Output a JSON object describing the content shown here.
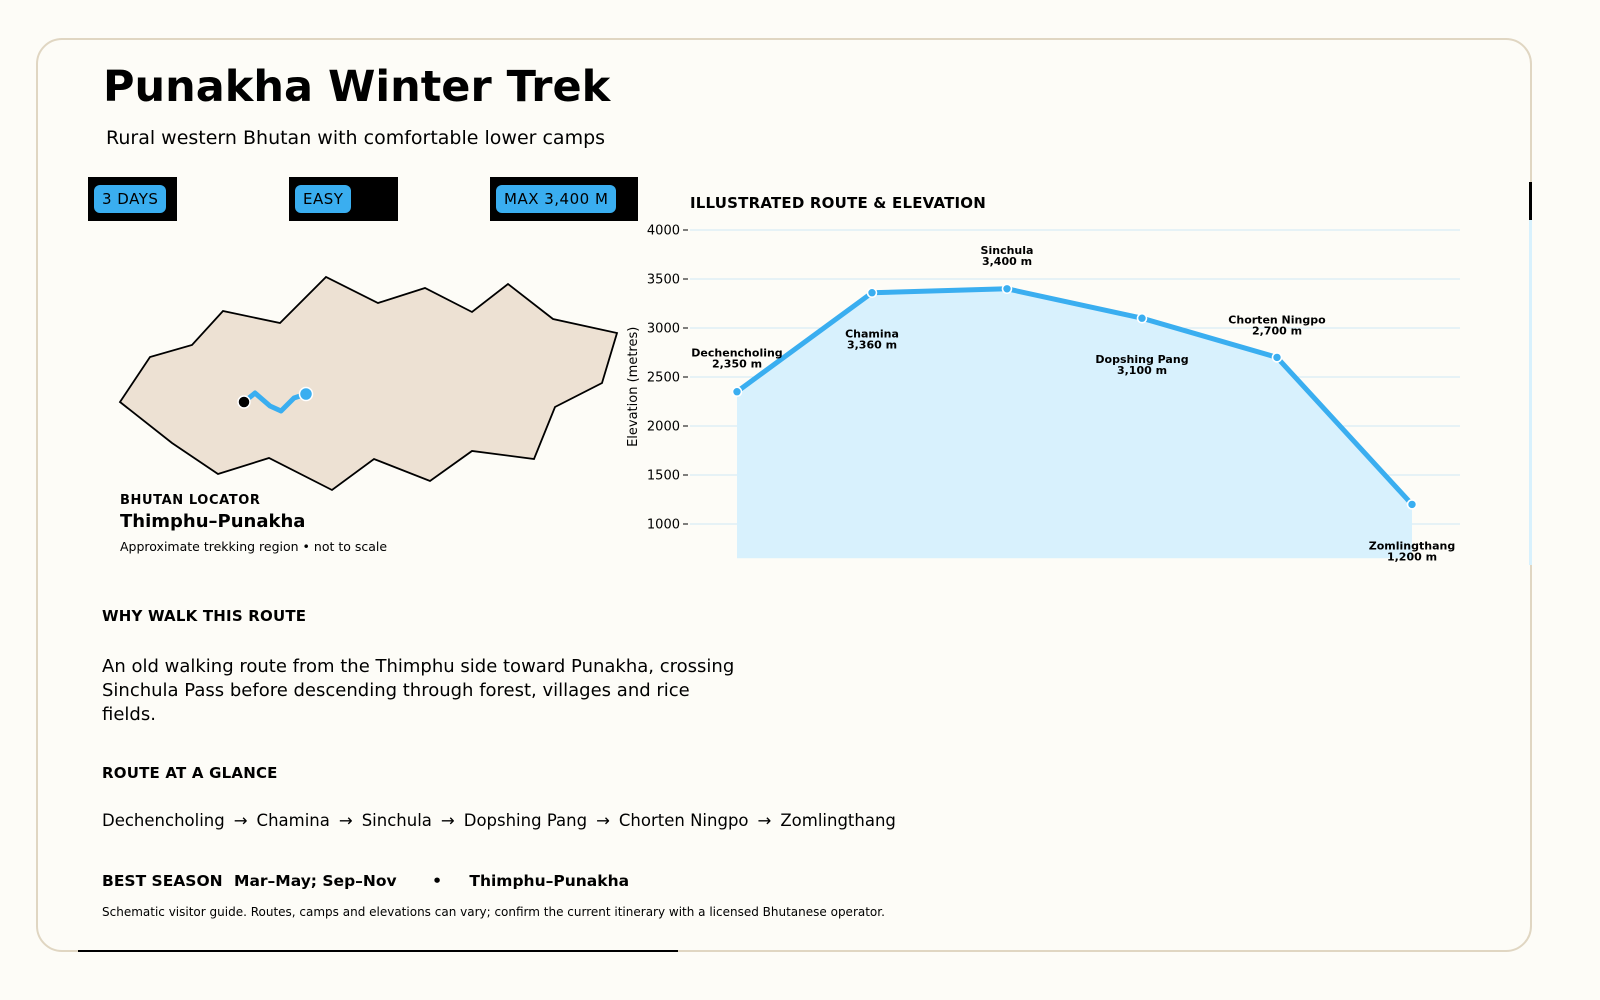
{
  "header": {
    "title": "Punakha Winter Trek",
    "subtitle": "Rural western Bhutan with comfortable lower camps"
  },
  "badges": {
    "days": "3 DAYS",
    "difficulty": "EASY",
    "max_altitude": "MAX 3,400 M"
  },
  "locator": {
    "heading": "BHUTAN LOCATOR",
    "name": "Thimphu–Punakha",
    "note": "Approximate trekking region • not to scale"
  },
  "chart_heading": "ILLUSTRATED ROUTE & ELEVATION",
  "chart_data": {
    "type": "area",
    "title": "ILLUSTRATED ROUTE & ELEVATION",
    "xlabel": "",
    "ylabel": "Elevation (metres)",
    "ylim": [
      650,
      4000
    ],
    "yticks": [
      1000,
      1500,
      2000,
      2500,
      3000,
      3500,
      4000
    ],
    "grid": true,
    "accent_color": "#3aaef0",
    "fill_color": "#d8f1fd",
    "points": [
      {
        "name": "Dechencholing",
        "label": "2,350 m",
        "elevation": 2350
      },
      {
        "name": "Chamina",
        "label": "3,360 m",
        "elevation": 3360
      },
      {
        "name": "Sinchula",
        "label": "3,400 m",
        "elevation": 3400
      },
      {
        "name": "Dopshing Pang",
        "label": "3,100 m",
        "elevation": 3100
      },
      {
        "name": "Chorten Ningpo",
        "label": "2,700 m",
        "elevation": 2700
      },
      {
        "name": "Zomlingthang",
        "label": "1,200 m",
        "elevation": 1200
      }
    ]
  },
  "why": {
    "heading": "WHY WALK THIS ROUTE",
    "text": "An old walking route from the Thimphu side toward Punakha, crossing Sinchula Pass before descending through forest, villages and rice fields."
  },
  "glance": {
    "heading": "ROUTE AT A GLANCE",
    "stops": [
      "Dechencholing",
      "Chamina",
      "Sinchula",
      "Dopshing Pang",
      "Chorten Ningpo",
      "Zomlingthang"
    ],
    "arrow": "→"
  },
  "season": {
    "label": "BEST SEASON",
    "value": "Mar–May; Sep–Nov",
    "separator": "•",
    "region": "Thimphu–Punakha"
  },
  "disclaimer": "Schematic visitor guide. Routes, camps and elevations can vary; confirm the current itinerary with a licensed Bhutanese operator."
}
